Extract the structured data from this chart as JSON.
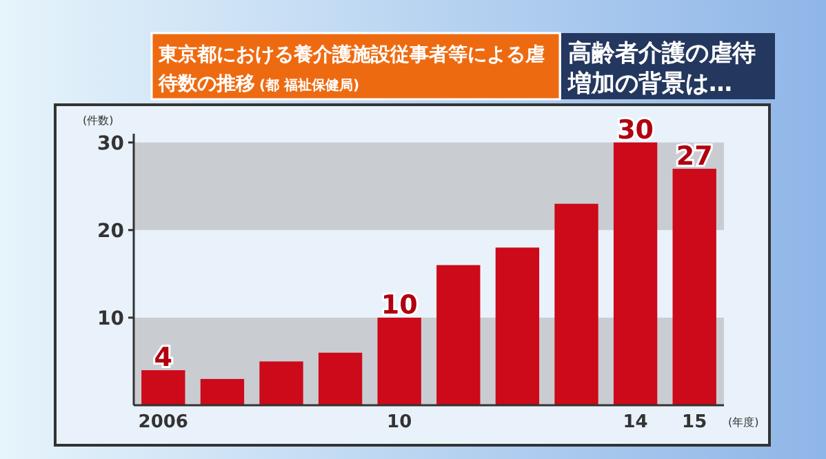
{
  "chart_data": {
    "type": "bar",
    "title": "東京都における養介護施設従事者等による虐待数の推移",
    "annotations": [
      "(都 福祉保健局)",
      "高齢者介護の虐待増加の背景は…"
    ],
    "ylabel": "(件数)",
    "xlabel": "(年度)",
    "categories": [
      "2006",
      null,
      null,
      null,
      "10",
      null,
      null,
      null,
      "14",
      "15"
    ],
    "values": [
      4,
      3,
      5,
      6,
      10,
      16,
      18,
      23,
      30,
      27
    ],
    "color": "#cc0a1a",
    "value_labels": [
      "4",
      null,
      null,
      null,
      "10",
      null,
      null,
      null,
      "30",
      "27"
    ],
    "ylim": [
      0,
      31
    ],
    "yticks": [
      10,
      20,
      30
    ],
    "bands": [
      {
        "axis": "y",
        "from": 0,
        "to": 10,
        "color": "#c9cdd2"
      },
      {
        "axis": "y",
        "from": 20,
        "to": 30,
        "color": "#c9cdd2"
      }
    ]
  }
}
